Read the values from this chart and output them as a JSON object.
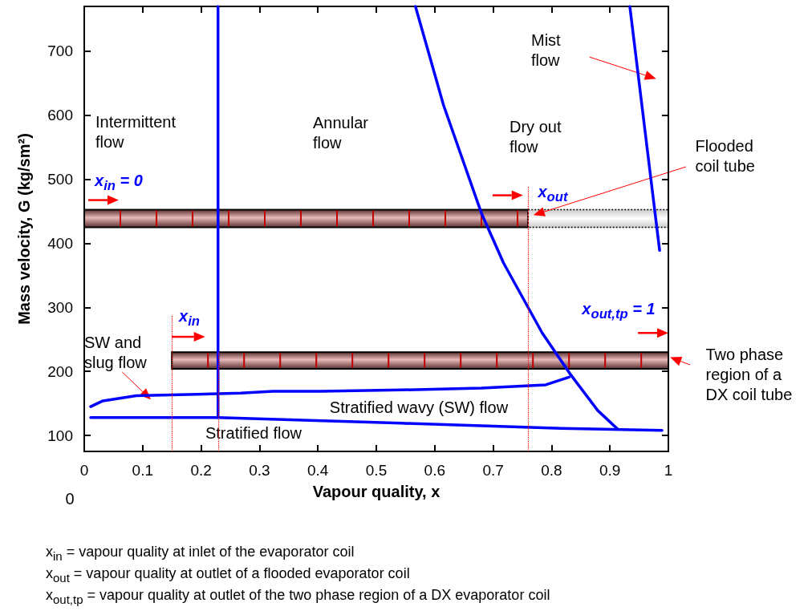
{
  "chart_data": {
    "type": "line",
    "xlabel": "Vapour quality, x",
    "ylabel": "Mass velocity, G (kg/sm²)",
    "xlim": [
      0,
      1
    ],
    "ylim": [
      75,
      770
    ],
    "xticks": [
      0,
      0.1,
      0.2,
      0.3,
      0.4,
      0.5,
      0.6,
      0.7,
      0.8,
      0.9,
      1
    ],
    "yticks": [
      100,
      200,
      300,
      400,
      500,
      600,
      700
    ],
    "series": [
      {
        "color": "#0000ff",
        "x": [
          0.229,
          0.229
        ],
        "values": [
          128,
          770
        ]
      },
      {
        "color": "#0000ff",
        "x": [
          0.567,
          0.615,
          0.68,
          0.718,
          0.784,
          0.831,
          0.879,
          0.913
        ],
        "values": [
          770,
          616,
          447,
          369,
          260,
          197,
          139,
          110
        ]
      },
      {
        "color": "#0000ff",
        "x": [
          0.934,
          0.985
        ],
        "values": [
          770,
          389
        ]
      },
      {
        "color": "#0000ff",
        "x": [
          0.011,
          0.032,
          0.089,
          0.268,
          0.323,
          0.405,
          0.543,
          0.68,
          0.79,
          0.83
        ],
        "values": [
          145,
          154,
          162,
          166,
          169,
          169,
          171,
          174,
          179,
          191
        ]
      },
      {
        "color": "#0000ff",
        "x": [
          0.011,
          0.229,
          0.543,
          0.817,
          0.989
        ],
        "values": [
          128,
          128,
          119,
          111,
          108
        ]
      }
    ],
    "ref_lines": [
      {
        "axis": "x",
        "value": 0.15,
        "color": "#ff0000",
        "line_style": "dotted"
      },
      {
        "axis": "x",
        "value": 0.23,
        "color": "#ff0000",
        "line_style": "dotted"
      },
      {
        "axis": "x",
        "value": 0.76,
        "color": "#ff0000",
        "line_style": "dotted"
      }
    ],
    "annotations": [
      "Intermittent flow",
      "Annular flow",
      "Dry out flow",
      "Mist flow",
      "SW and slug flow",
      "Stratified wavy (SW) flow",
      "Stratified flow",
      "x$_{in}$ = 0",
      "x$_{out}$",
      "x$_{in}$",
      "x$_{out,tp}$ = 1",
      "Flooded coil tube",
      "Two phase region of a DX coil tube",
      "0",
      "x$_{in}$ = vapour quality at inlet of the evaporator coil",
      "x$_{out}$ = vapour quality at outlet of a flooded evaporator coil",
      "x$_{out,tp}$ = vapour quality at outlet of the two phase region of a DX evaporator coil"
    ]
  }
}
